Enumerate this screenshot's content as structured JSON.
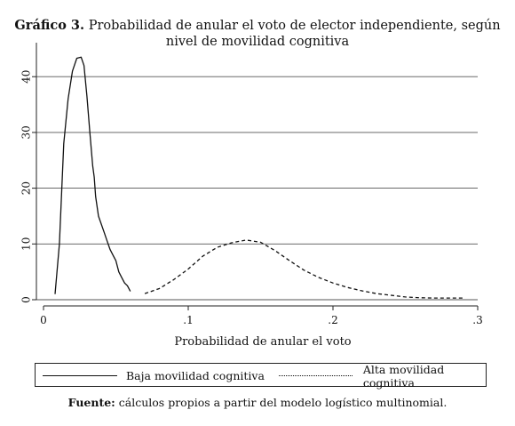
{
  "chart_data": {
    "type": "line",
    "title_label": "Gráfico 3.",
    "title_line1": "Probabilidad de anular el voto de elector independiente, según",
    "title_line2": "nivel de movilidad cognitiva",
    "xlabel": "Probabilidad de anular el voto",
    "ylabel": "",
    "xlim": [
      0,
      0.3
    ],
    "ylim": [
      0,
      45
    ],
    "x_ticks": [
      0,
      0.1,
      0.2,
      0.3
    ],
    "x_tick_labels": [
      "0",
      ".1",
      ".2",
      ".3"
    ],
    "y_ticks": [
      0,
      10,
      20,
      30,
      40
    ],
    "y_tick_labels": [
      "0",
      "10",
      "20",
      "30",
      "40"
    ],
    "grid": "horizontal",
    "legend_position": "bottom",
    "series": [
      {
        "name": "Baja movilidad cognitiva",
        "style": "solid",
        "x": [
          0.008,
          0.011,
          0.014,
          0.017,
          0.02,
          0.023,
          0.026,
          0.028,
          0.03,
          0.032,
          0.034,
          0.035,
          0.036,
          0.038,
          0.04,
          0.042,
          0.044,
          0.046,
          0.048,
          0.05,
          0.052,
          0.054,
          0.056,
          0.058,
          0.06
        ],
        "y": [
          1,
          10,
          28,
          36,
          41,
          43.3,
          43.5,
          42,
          36.5,
          30,
          24,
          22,
          18.5,
          15,
          13.5,
          12,
          10.5,
          9,
          8,
          7,
          5,
          4,
          3,
          2.5,
          1.5
        ]
      },
      {
        "name": "Alta movilidad cognitiva",
        "style": "dashed",
        "x": [
          0.07,
          0.08,
          0.09,
          0.1,
          0.11,
          0.12,
          0.13,
          0.14,
          0.15,
          0.16,
          0.17,
          0.18,
          0.19,
          0.2,
          0.21,
          0.22,
          0.23,
          0.24,
          0.25,
          0.26,
          0.27,
          0.28,
          0.29
        ],
        "y": [
          1.1,
          2,
          3.6,
          5.5,
          7.8,
          9.4,
          10.2,
          10.7,
          10.3,
          8.8,
          7,
          5.3,
          4,
          3,
          2.2,
          1.6,
          1.1,
          0.8,
          0.5,
          0.35,
          0.3,
          0.3,
          0.3
        ]
      }
    ],
    "source_label": "Fuente:",
    "source_text": "cálculos propios a partir del modelo logístico multinomial."
  }
}
